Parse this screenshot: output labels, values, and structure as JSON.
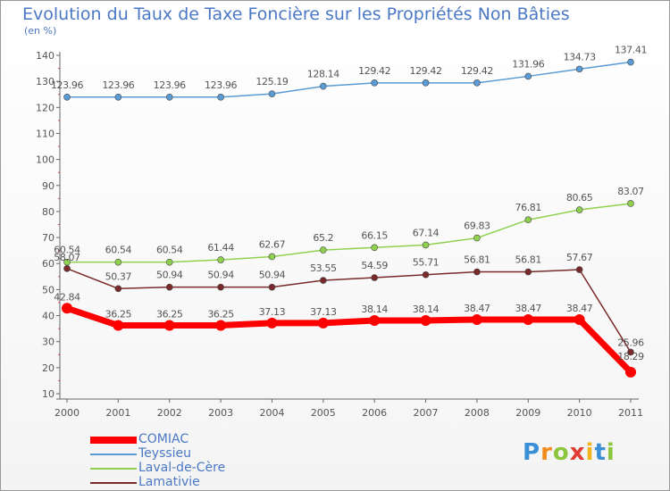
{
  "chart_data": {
    "type": "line",
    "title": "Evolution du Taux de Taxe Foncière sur les Propriétés Non Bâties",
    "ylabel": "(en %)",
    "xlabel": "",
    "ylim": [
      10,
      140
    ],
    "yticks": [
      10,
      20,
      30,
      40,
      50,
      60,
      70,
      80,
      90,
      100,
      110,
      120,
      130,
      140
    ],
    "x": [
      "2000",
      "2001",
      "2002",
      "2003",
      "2004",
      "2005",
      "2006",
      "2007",
      "2008",
      "2009",
      "2010",
      "2011"
    ],
    "series": [
      {
        "name": "COMIAC",
        "color": "#ff0000",
        "values": [
          42.84,
          36.25,
          36.25,
          36.25,
          37.13,
          37.13,
          38.14,
          38.14,
          38.47,
          38.47,
          38.47,
          18.29
        ],
        "labels": [
          "42.84",
          "36.25",
          "36.25",
          "36.25",
          "37.13",
          "37.13",
          "38.14",
          "38.14",
          "38.47",
          "38.47",
          "38.47",
          "18.29"
        ]
      },
      {
        "name": "Teyssieu",
        "color": "#5b9bd5",
        "values": [
          123.96,
          123.96,
          123.96,
          123.96,
          125.19,
          128.14,
          129.42,
          129.42,
          129.42,
          131.96,
          134.73,
          137.41
        ],
        "labels": [
          "123.96",
          "123.96",
          "123.96",
          "123.96",
          "125.19",
          "128.14",
          "129.42",
          "129.42",
          "129.42",
          "131.96",
          "134.73",
          "137.41"
        ]
      },
      {
        "name": "Laval-de-Cère",
        "color": "#8fd14f",
        "values": [
          60.54,
          60.54,
          60.54,
          61.44,
          62.67,
          65.2,
          66.15,
          67.14,
          69.83,
          76.81,
          80.65,
          83.07
        ],
        "labels": [
          "60.54",
          "60.54",
          "60.54",
          "61.44",
          "62.67",
          "65.2",
          "66.15",
          "67.14",
          "69.83",
          "76.81",
          "80.65",
          "83.07"
        ]
      },
      {
        "name": "Lamativie",
        "color": "#7a2a2a",
        "values": [
          58.07,
          50.37,
          50.94,
          50.94,
          50.94,
          53.55,
          54.59,
          55.71,
          56.81,
          56.81,
          57.67,
          25.96
        ],
        "labels": [
          "58.07",
          "50.37",
          "50.94",
          "50.94",
          "50.94",
          "53.55",
          "54.59",
          "55.71",
          "56.81",
          "56.81",
          "57.67",
          "25.96"
        ]
      }
    ],
    "legend": {
      "placement": "bottom-left"
    },
    "grid": false,
    "logo_text": "Proxiti"
  }
}
